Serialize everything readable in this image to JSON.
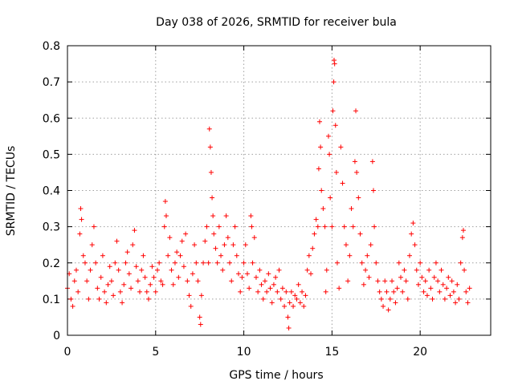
{
  "chart_data": {
    "type": "scatter",
    "title": "Day 038 of 2026, SRMTID for receiver bula",
    "xlabel": "GPS time / hours",
    "ylabel": "SRMTID / TECUs",
    "xlim": [
      0,
      24
    ],
    "ylim": [
      0,
      0.8
    ],
    "xticks": [
      0,
      5,
      10,
      15,
      20
    ],
    "xtick_labels": [
      "0",
      "5",
      "10",
      "15",
      "20"
    ],
    "yticks": [
      0,
      0.1,
      0.2,
      0.3,
      0.4,
      0.5,
      0.6,
      0.7,
      0.8
    ],
    "ytick_labels": [
      "0",
      "0.1",
      "0.2",
      "0.3",
      "0.4",
      "0.5",
      "0.6",
      "0.7",
      "0.8"
    ],
    "grid": true,
    "marker": "+",
    "color": "#ff0000",
    "series": [
      {
        "name": "SRMTID",
        "points": [
          [
            0.0,
            0.13
          ],
          [
            0.1,
            0.17
          ],
          [
            0.2,
            0.1
          ],
          [
            0.3,
            0.08
          ],
          [
            0.4,
            0.15
          ],
          [
            0.5,
            0.18
          ],
          [
            0.6,
            0.12
          ],
          [
            0.7,
            0.28
          ],
          [
            0.75,
            0.35
          ],
          [
            0.8,
            0.32
          ],
          [
            0.9,
            0.22
          ],
          [
            1.0,
            0.2
          ],
          [
            1.1,
            0.15
          ],
          [
            1.2,
            0.1
          ],
          [
            1.3,
            0.18
          ],
          [
            1.4,
            0.25
          ],
          [
            1.5,
            0.3
          ],
          [
            1.6,
            0.2
          ],
          [
            1.7,
            0.13
          ],
          [
            1.8,
            0.1
          ],
          [
            1.9,
            0.16
          ],
          [
            2.0,
            0.22
          ],
          [
            2.1,
            0.12
          ],
          [
            2.2,
            0.09
          ],
          [
            2.3,
            0.14
          ],
          [
            2.4,
            0.19
          ],
          [
            2.5,
            0.15
          ],
          [
            2.6,
            0.11
          ],
          [
            2.7,
            0.2
          ],
          [
            2.8,
            0.26
          ],
          [
            2.9,
            0.18
          ],
          [
            3.0,
            0.12
          ],
          [
            3.1,
            0.09
          ],
          [
            3.2,
            0.14
          ],
          [
            3.3,
            0.2
          ],
          [
            3.4,
            0.23
          ],
          [
            3.5,
            0.17
          ],
          [
            3.6,
            0.13
          ],
          [
            3.7,
            0.25
          ],
          [
            3.8,
            0.29
          ],
          [
            3.9,
            0.19
          ],
          [
            4.0,
            0.15
          ],
          [
            4.1,
            0.12
          ],
          [
            4.2,
            0.18
          ],
          [
            4.3,
            0.22
          ],
          [
            4.4,
            0.16
          ],
          [
            4.5,
            0.12
          ],
          [
            4.6,
            0.1
          ],
          [
            4.7,
            0.14
          ],
          [
            4.8,
            0.19
          ],
          [
            4.9,
            0.16
          ],
          [
            5.0,
            0.12
          ],
          [
            5.1,
            0.18
          ],
          [
            5.2,
            0.2
          ],
          [
            5.3,
            0.15
          ],
          [
            5.4,
            0.14
          ],
          [
            5.5,
            0.3
          ],
          [
            5.55,
            0.37
          ],
          [
            5.6,
            0.33
          ],
          [
            5.7,
            0.22
          ],
          [
            5.8,
            0.27
          ],
          [
            5.9,
            0.18
          ],
          [
            6.0,
            0.14
          ],
          [
            6.1,
            0.2
          ],
          [
            6.2,
            0.23
          ],
          [
            6.3,
            0.16
          ],
          [
            6.4,
            0.22
          ],
          [
            6.5,
            0.26
          ],
          [
            6.6,
            0.19
          ],
          [
            6.7,
            0.28
          ],
          [
            6.8,
            0.15
          ],
          [
            6.9,
            0.11
          ],
          [
            7.0,
            0.08
          ],
          [
            7.1,
            0.17
          ],
          [
            7.2,
            0.25
          ],
          [
            7.3,
            0.2
          ],
          [
            7.4,
            0.15
          ],
          [
            7.5,
            0.05
          ],
          [
            7.55,
            0.03
          ],
          [
            7.6,
            0.11
          ],
          [
            7.7,
            0.2
          ],
          [
            7.8,
            0.26
          ],
          [
            7.9,
            0.3
          ],
          [
            8.0,
            0.2
          ],
          [
            8.05,
            0.57
          ],
          [
            8.1,
            0.52
          ],
          [
            8.15,
            0.45
          ],
          [
            8.2,
            0.38
          ],
          [
            8.25,
            0.33
          ],
          [
            8.3,
            0.28
          ],
          [
            8.4,
            0.24
          ],
          [
            8.5,
            0.2
          ],
          [
            8.6,
            0.3
          ],
          [
            8.7,
            0.22
          ],
          [
            8.8,
            0.18
          ],
          [
            8.9,
            0.25
          ],
          [
            9.0,
            0.33
          ],
          [
            9.1,
            0.27
          ],
          [
            9.2,
            0.2
          ],
          [
            9.3,
            0.15
          ],
          [
            9.4,
            0.25
          ],
          [
            9.5,
            0.3
          ],
          [
            9.6,
            0.22
          ],
          [
            9.7,
            0.17
          ],
          [
            9.8,
            0.12
          ],
          [
            9.9,
            0.16
          ],
          [
            10.0,
            0.2
          ],
          [
            10.1,
            0.25
          ],
          [
            10.2,
            0.17
          ],
          [
            10.3,
            0.13
          ],
          [
            10.4,
            0.33
          ],
          [
            10.45,
            0.3
          ],
          [
            10.5,
            0.2
          ],
          [
            10.6,
            0.27
          ],
          [
            10.7,
            0.16
          ],
          [
            10.8,
            0.12
          ],
          [
            10.9,
            0.18
          ],
          [
            11.0,
            0.14
          ],
          [
            11.1,
            0.1
          ],
          [
            11.2,
            0.15
          ],
          [
            11.3,
            0.12
          ],
          [
            11.4,
            0.17
          ],
          [
            11.5,
            0.13
          ],
          [
            11.6,
            0.09
          ],
          [
            11.7,
            0.14
          ],
          [
            11.8,
            0.16
          ],
          [
            11.9,
            0.12
          ],
          [
            12.0,
            0.18
          ],
          [
            12.1,
            0.1
          ],
          [
            12.2,
            0.13
          ],
          [
            12.3,
            0.08
          ],
          [
            12.4,
            0.12
          ],
          [
            12.5,
            0.05
          ],
          [
            12.55,
            0.02
          ],
          [
            12.6,
            0.09
          ],
          [
            12.7,
            0.12
          ],
          [
            12.8,
            0.08
          ],
          [
            12.9,
            0.11
          ],
          [
            13.0,
            0.1
          ],
          [
            13.1,
            0.14
          ],
          [
            13.2,
            0.09
          ],
          [
            13.3,
            0.12
          ],
          [
            13.4,
            0.08
          ],
          [
            13.5,
            0.11
          ],
          [
            13.6,
            0.18
          ],
          [
            13.7,
            0.22
          ],
          [
            13.8,
            0.17
          ],
          [
            13.9,
            0.24
          ],
          [
            14.0,
            0.28
          ],
          [
            14.1,
            0.32
          ],
          [
            14.2,
            0.3
          ],
          [
            14.25,
            0.46
          ],
          [
            14.3,
            0.59
          ],
          [
            14.35,
            0.52
          ],
          [
            14.4,
            0.4
          ],
          [
            14.5,
            0.35
          ],
          [
            14.6,
            0.3
          ],
          [
            14.65,
            0.12
          ],
          [
            14.7,
            0.18
          ],
          [
            14.8,
            0.55
          ],
          [
            14.85,
            0.5
          ],
          [
            14.9,
            0.38
          ],
          [
            15.0,
            0.3
          ],
          [
            15.05,
            0.62
          ],
          [
            15.1,
            0.7
          ],
          [
            15.12,
            0.76
          ],
          [
            15.15,
            0.75
          ],
          [
            15.2,
            0.58
          ],
          [
            15.25,
            0.45
          ],
          [
            15.3,
            0.2
          ],
          [
            15.4,
            0.13
          ],
          [
            15.5,
            0.52
          ],
          [
            15.6,
            0.42
          ],
          [
            15.7,
            0.3
          ],
          [
            15.8,
            0.25
          ],
          [
            15.9,
            0.15
          ],
          [
            16.0,
            0.22
          ],
          [
            16.1,
            0.35
          ],
          [
            16.2,
            0.3
          ],
          [
            16.3,
            0.48
          ],
          [
            16.35,
            0.62
          ],
          [
            16.4,
            0.45
          ],
          [
            16.5,
            0.38
          ],
          [
            16.6,
            0.28
          ],
          [
            16.7,
            0.2
          ],
          [
            16.8,
            0.14
          ],
          [
            16.9,
            0.18
          ],
          [
            17.0,
            0.22
          ],
          [
            17.1,
            0.16
          ],
          [
            17.2,
            0.25
          ],
          [
            17.3,
            0.48
          ],
          [
            17.35,
            0.4
          ],
          [
            17.4,
            0.3
          ],
          [
            17.5,
            0.2
          ],
          [
            17.6,
            0.15
          ],
          [
            17.7,
            0.12
          ],
          [
            17.8,
            0.1
          ],
          [
            17.9,
            0.08
          ],
          [
            18.0,
            0.15
          ],
          [
            18.1,
            0.12
          ],
          [
            18.2,
            0.07
          ],
          [
            18.3,
            0.1
          ],
          [
            18.4,
            0.15
          ],
          [
            18.5,
            0.12
          ],
          [
            18.6,
            0.09
          ],
          [
            18.7,
            0.13
          ],
          [
            18.8,
            0.2
          ],
          [
            18.9,
            0.16
          ],
          [
            19.0,
            0.12
          ],
          [
            19.1,
            0.18
          ],
          [
            19.2,
            0.15
          ],
          [
            19.3,
            0.1
          ],
          [
            19.4,
            0.22
          ],
          [
            19.5,
            0.28
          ],
          [
            19.6,
            0.31
          ],
          [
            19.7,
            0.25
          ],
          [
            19.8,
            0.18
          ],
          [
            19.9,
            0.14
          ],
          [
            20.0,
            0.2
          ],
          [
            20.1,
            0.16
          ],
          [
            20.2,
            0.12
          ],
          [
            20.3,
            0.15
          ],
          [
            20.4,
            0.11
          ],
          [
            20.5,
            0.18
          ],
          [
            20.6,
            0.13
          ],
          [
            20.7,
            0.1
          ],
          [
            20.8,
            0.16
          ],
          [
            20.9,
            0.2
          ],
          [
            21.0,
            0.15
          ],
          [
            21.1,
            0.12
          ],
          [
            21.2,
            0.18
          ],
          [
            21.3,
            0.14
          ],
          [
            21.4,
            0.1
          ],
          [
            21.5,
            0.13
          ],
          [
            21.6,
            0.16
          ],
          [
            21.7,
            0.11
          ],
          [
            21.8,
            0.15
          ],
          [
            21.9,
            0.12
          ],
          [
            22.0,
            0.09
          ],
          [
            22.1,
            0.14
          ],
          [
            22.2,
            0.1
          ],
          [
            22.3,
            0.2
          ],
          [
            22.4,
            0.27
          ],
          [
            22.45,
            0.29
          ],
          [
            22.5,
            0.18
          ],
          [
            22.6,
            0.12
          ],
          [
            22.7,
            0.09
          ],
          [
            22.8,
            0.13
          ]
        ]
      }
    ]
  }
}
